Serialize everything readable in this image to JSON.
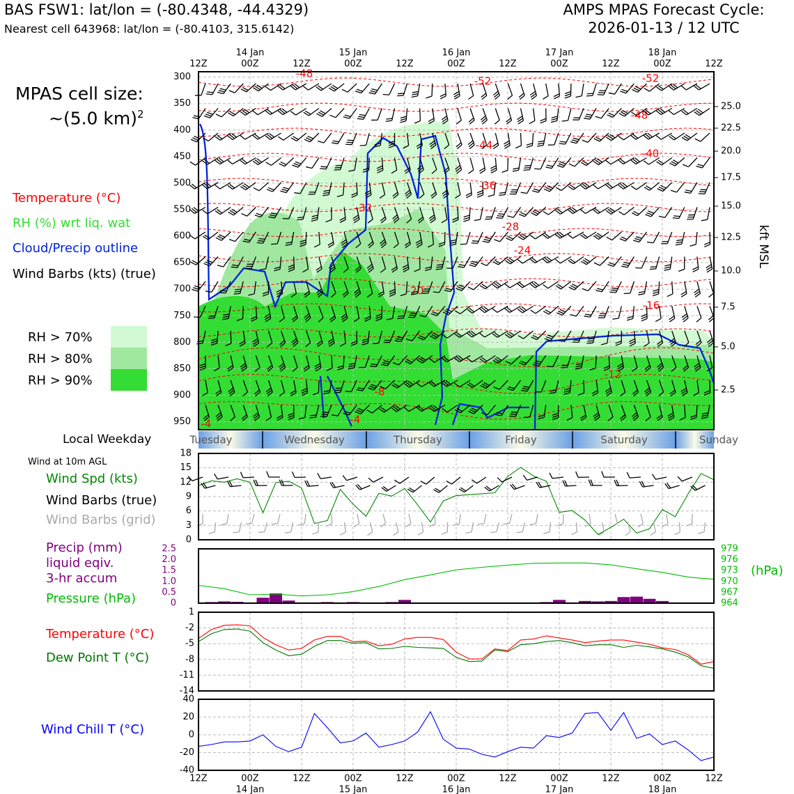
{
  "header": {
    "station_line": "BAS FSW1: lat/lon = (-80.4348, -44.4329)",
    "cell_line": "Nearest cell 643968: lat/lon = (-80.4103, 315.6142)",
    "forecast_title": "AMPS MPAS Forecast Cycle:",
    "forecast_cycle": "2026-01-13 / 12 UTC"
  },
  "cell_size": {
    "label": "MPAS cell size:",
    "value": "~(5.0 km)",
    "exponent": "2"
  },
  "legend": {
    "temperature": "Temperature (°C)",
    "rh": "RH (%) wrt liq. wat",
    "cloud": "Cloud/Precip outline",
    "wind": "Wind Barbs (kts) (true)",
    "rh_levels": [
      "RH > 70%",
      "RH > 80%",
      "RH > 90%"
    ],
    "rh_colors": [
      "#d2fad2",
      "#a0e8a0",
      "#33dd33"
    ]
  },
  "colors": {
    "temperature": "#ff0000",
    "rh_label": "#33dd33",
    "cloud": "#0022dd",
    "wind_speed": "#008800",
    "grid_barbs": "#aaaaaa",
    "precip": "#800080",
    "pressure": "#00bb00",
    "dewpoint": "#007700",
    "wind_chill": "#0000ff"
  },
  "weekday": {
    "label": "Local Weekday",
    "days": [
      "Tuesday",
      "Wednesday",
      "Thursday",
      "Friday",
      "Saturday",
      "Sunday"
    ]
  },
  "panel_labels": {
    "wind_agl": "Wind at 10m AGL",
    "wind_spd": "Wind Spd (kts)",
    "wind_barbs_true": "Wind Barbs (true)",
    "wind_barbs_grid": "Wind Barbs (grid)",
    "precip1": "Precip (mm)",
    "precip2": "liquid eqiv.",
    "precip3": "3-hr accum",
    "pressure": "Pressure (hPa)",
    "hpa_unit": "(hPa)",
    "temperature": "Temperature (°C)",
    "dewpoint": "Dew Point T (°C)",
    "windchill": "Wind Chill T (°C)",
    "kft": "kft MSL"
  },
  "time_axis": {
    "hour_labels": [
      "12Z",
      "00Z",
      "12Z",
      "00Z",
      "12Z",
      "00Z",
      "12Z",
      "00Z",
      "12Z",
      "00Z",
      "12Z"
    ],
    "date_labels": [
      "14 Jan",
      "15 Jan",
      "16 Jan",
      "17 Jan",
      "18 Jan"
    ]
  },
  "chart_data": [
    {
      "type": "line",
      "name": "vertical cross-section",
      "y_axis": "pressure (hPa)",
      "y_ticks": [
        300,
        350,
        400,
        450,
        500,
        550,
        600,
        650,
        700,
        750,
        800,
        850,
        900,
        950
      ],
      "ylim": [
        965,
        290
      ],
      "kft_ticks": [
        "25.0",
        "22.5",
        "20.0",
        "17.5",
        "15.0",
        "12.5",
        "10.0",
        "7.5",
        "5.0",
        "2.5"
      ],
      "kft_values": [
        25.0,
        22.5,
        20.0,
        17.5,
        15.0,
        12.5,
        10.0,
        7.5,
        5.0,
        2.5
      ],
      "temperature_contour_labels": [
        "-48",
        "-52",
        "-52",
        "-48",
        "-44",
        "-40",
        "-36",
        "-32",
        "-28",
        "-24",
        "-20",
        "-16",
        "-12",
        "-8",
        "-4",
        "-4"
      ],
      "grid": true
    },
    {
      "type": "line",
      "title": "Wind Spd (kts)",
      "yticks": [
        "18",
        "15",
        "12",
        "9",
        "6",
        "3",
        "0"
      ],
      "ylim": [
        0,
        18
      ],
      "series": [
        {
          "name": "Wind Spd (kts)",
          "x_hours": [
            0,
            3,
            6,
            9,
            12,
            15,
            18,
            21,
            24,
            27,
            30,
            33,
            36,
            39,
            42,
            45,
            48,
            51,
            54,
            57,
            60,
            63,
            66,
            69,
            72,
            75,
            78,
            81,
            84,
            87,
            90,
            93,
            96,
            99,
            102,
            105,
            108,
            111,
            114,
            117,
            120
          ],
          "values": [
            11.3,
            12.3,
            12,
            12.7,
            12,
            5.6,
            11.9,
            12.2,
            10.8,
            3.4,
            4,
            10.5,
            7.4,
            4.9,
            9.7,
            9.1,
            10.7,
            7.3,
            3.7,
            8.1,
            9.2,
            9.4,
            9.6,
            9.8,
            13.2,
            15.1,
            13.3,
            12.2,
            5.7,
            6.1,
            4.1,
            1.1,
            2.6,
            4.3,
            1.4,
            2.3,
            6.3,
            4.8,
            9.6,
            13.8,
            12.5
          ]
        }
      ]
    },
    {
      "type": "bar",
      "title": "Precip (mm) / Pressure (hPa)",
      "precip_yticks": [
        "2.5",
        "2.0",
        "1.5",
        "1.0",
        "0.5",
        "0"
      ],
      "pressure_yticks": [
        "979",
        "976",
        "973",
        "970",
        "967",
        "964"
      ],
      "precip_ylim": [
        0,
        2.5
      ],
      "pressure_ylim": [
        964,
        979
      ],
      "precip_x_hours": [
        3,
        6,
        9,
        15,
        18,
        21,
        30,
        36,
        45,
        48,
        81,
        84,
        90,
        93,
        96,
        99,
        102,
        105,
        108
      ],
      "precip_values": [
        0.05,
        0.08,
        0.06,
        0.25,
        0.45,
        0.12,
        0.05,
        0.05,
        0.05,
        0.15,
        0.05,
        0.15,
        0.1,
        0.08,
        0.1,
        0.28,
        0.3,
        0.2,
        0.1
      ],
      "series": [
        {
          "name": "Pressure (hPa)",
          "x_hours": [
            0,
            6,
            12,
            18,
            24,
            30,
            36,
            42,
            48,
            54,
            60,
            66,
            72,
            78,
            84,
            90,
            96,
            102,
            108,
            114,
            120
          ],
          "values": [
            968.9,
            968.0,
            966.3,
            966.5,
            966.0,
            966.3,
            967.2,
            968.6,
            970.5,
            971.8,
            973.2,
            973.9,
            974.5,
            975.0,
            975.1,
            975.1,
            974.6,
            973.5,
            972.5,
            971.2,
            970.6
          ]
        }
      ]
    },
    {
      "type": "line",
      "title": "Temperature (°C) / Dew Point T (°C)",
      "yticks": [
        "1",
        "-2",
        "-5",
        "-8",
        "-11",
        "-14"
      ],
      "ylim": [
        -14,
        1
      ],
      "x_hours": [
        0,
        3,
        6,
        9,
        12,
        15,
        18,
        21,
        24,
        27,
        30,
        33,
        36,
        39,
        42,
        45,
        48,
        51,
        54,
        57,
        60,
        63,
        66,
        69,
        72,
        75,
        78,
        81,
        84,
        87,
        90,
        93,
        96,
        99,
        102,
        105,
        108,
        111,
        114,
        117,
        120
      ],
      "series": [
        {
          "name": "Temperature (°C)",
          "values": [
            -4,
            -2.3,
            -1.5,
            -1.4,
            -1.6,
            -3.8,
            -5.2,
            -6.2,
            -5.9,
            -4.3,
            -3.6,
            -3.6,
            -4.6,
            -4.5,
            -5.4,
            -5.1,
            -4.1,
            -3.8,
            -3.8,
            -4.2,
            -6.6,
            -7.9,
            -7.9,
            -6,
            -6.3,
            -4.3,
            -4.1,
            -3.5,
            -3.9,
            -4.3,
            -4.8,
            -4.5,
            -4.3,
            -4.3,
            -4.7,
            -5.1,
            -5.8,
            -6.1,
            -7.1,
            -8.9,
            -8.4
          ]
        },
        {
          "name": "Dew Point T (°C)",
          "values": [
            -4.6,
            -3.1,
            -2.3,
            -2.2,
            -2.6,
            -4.8,
            -6.2,
            -7.3,
            -7,
            -5.5,
            -4.4,
            -4.4,
            -4.9,
            -4.8,
            -6,
            -5.9,
            -5.5,
            -5.7,
            -5.8,
            -5.9,
            -7.6,
            -8.4,
            -8.3,
            -6.2,
            -6.5,
            -5.2,
            -5,
            -4.6,
            -4.4,
            -4.8,
            -5.4,
            -5.2,
            -5.2,
            -5.7,
            -5.3,
            -5.6,
            -6,
            -6.6,
            -7.5,
            -9.2,
            -9.7
          ]
        }
      ]
    },
    {
      "type": "line",
      "title": "Wind Chill T (°C)",
      "yticks": [
        "40",
        "20",
        "0",
        "-20",
        "-40"
      ],
      "ylim": [
        -40,
        40
      ],
      "series": [
        {
          "name": "Wind Chill T (°C)",
          "x_hours": [
            0,
            3,
            6,
            9,
            12,
            15,
            18,
            21,
            24,
            27,
            30,
            33,
            36,
            39,
            42,
            45,
            48,
            51,
            54,
            57,
            60,
            63,
            66,
            69,
            72,
            75,
            78,
            81,
            84,
            87,
            90,
            93,
            96,
            99,
            102,
            105,
            108,
            111,
            114,
            117,
            120
          ],
          "values": [
            -13,
            -11,
            -8,
            -8,
            -7,
            0,
            -13,
            -19,
            -14,
            24,
            8,
            -9,
            -7,
            2,
            -14,
            -11,
            -7,
            3,
            26,
            -5,
            -15,
            -16,
            -22,
            -25,
            -19,
            -14,
            -15,
            -1,
            -3,
            2,
            24,
            25,
            5,
            25,
            -4,
            1,
            -11,
            -7,
            -17,
            -29,
            -25
          ]
        }
      ]
    }
  ]
}
